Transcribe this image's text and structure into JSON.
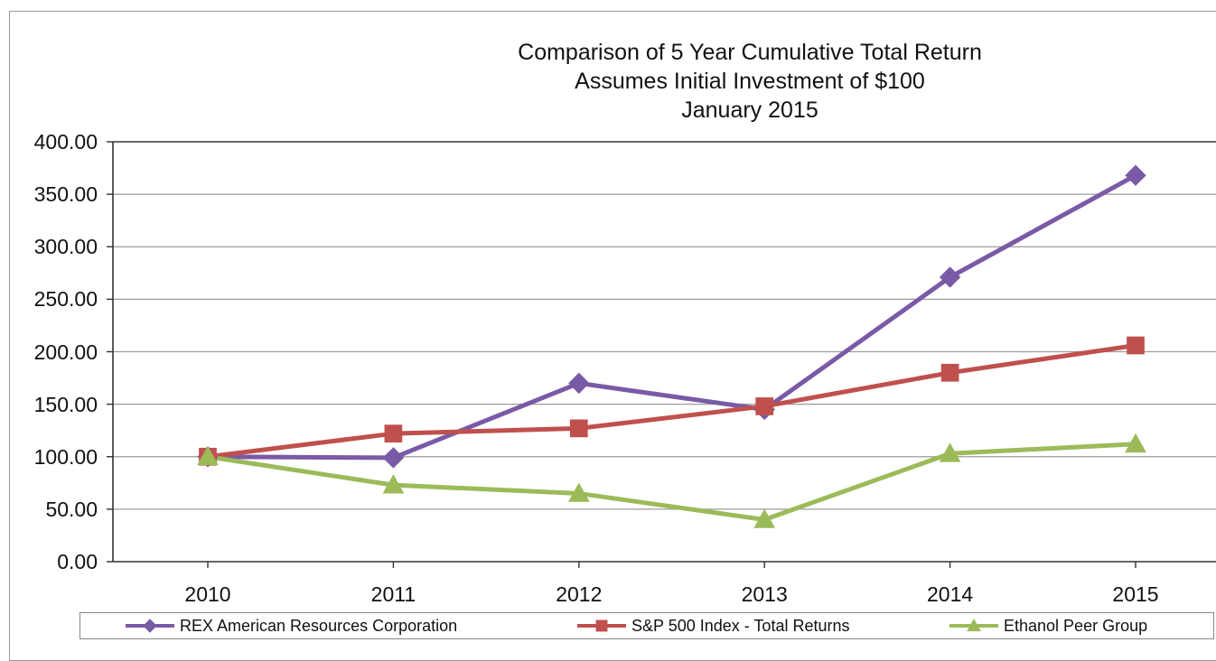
{
  "chart_data": {
    "type": "line",
    "title": "Comparison of 5 Year Cumulative Total Return",
    "subtitle_lines": [
      "Assumes Initial Investment of $100",
      "January 2015"
    ],
    "xlabel": "",
    "ylabel": "",
    "x": [
      "2010",
      "2011",
      "2012",
      "2013",
      "2014",
      "2015"
    ],
    "ylim": [
      0,
      400
    ],
    "y_ticks": [
      "0.00",
      "50.00",
      "100.00",
      "150.00",
      "200.00",
      "250.00",
      "300.00",
      "350.00",
      "400.00"
    ],
    "grid": true,
    "legend_position": "bottom",
    "series": [
      {
        "name": "REX American Resources Corporation",
        "marker": "diamond",
        "color": "#7a5aa6",
        "values": [
          100,
          99,
          170,
          145,
          271,
          368
        ]
      },
      {
        "name": "S&P 500 Index - Total Returns",
        "marker": "square",
        "color": "#c0504d",
        "values": [
          100,
          122,
          127,
          148,
          180,
          206
        ]
      },
      {
        "name": "Ethanol Peer Group",
        "marker": "triangle",
        "color": "#9bbb59",
        "values": [
          100,
          73,
          65,
          40,
          103,
          112
        ]
      }
    ]
  }
}
